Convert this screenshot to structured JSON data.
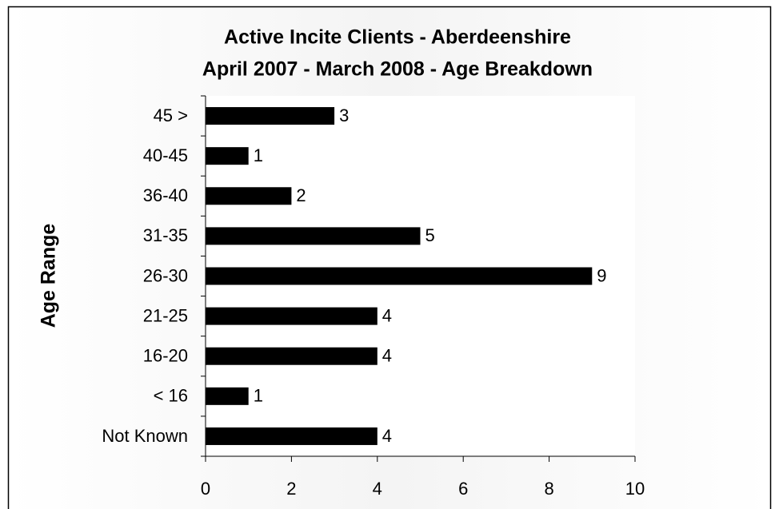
{
  "chart_data": {
    "type": "bar",
    "orientation": "horizontal",
    "title": [
      "Active Incite Clients - Aberdeenshire",
      "April 2007 - March 2008 - Age Breakdown"
    ],
    "y_label": "Age Range",
    "categories": [
      "45 >",
      "40-45",
      "36-40",
      "31-35",
      "26-30",
      "21-25",
      "16-20",
      "< 16",
      "Not Known"
    ],
    "values": [
      3,
      1,
      2,
      5,
      9,
      4,
      4,
      1,
      4
    ],
    "color": "#000000",
    "xlim": [
      0,
      10
    ],
    "xticks": [
      0,
      2,
      4,
      6,
      8,
      10
    ],
    "data_labels": true,
    "grid": false
  }
}
